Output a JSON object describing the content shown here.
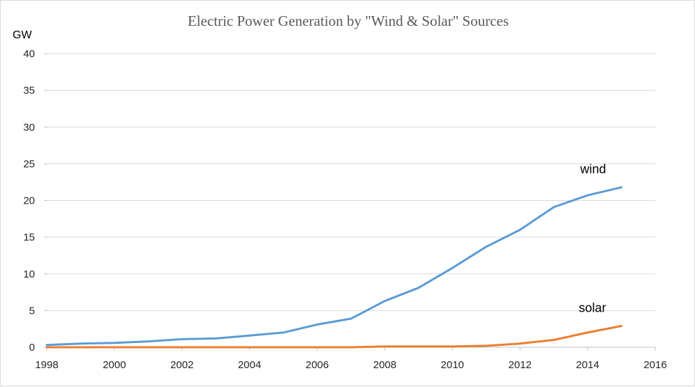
{
  "chart_data": {
    "type": "line",
    "title": "Electric Power Generation by \"Wind & Solar\" Sources",
    "ylabel": "GW",
    "xlabel": "",
    "xlim": [
      1998,
      2016
    ],
    "ylim": [
      0,
      40
    ],
    "x_ticks": [
      1998,
      2000,
      2002,
      2004,
      2006,
      2008,
      2010,
      2012,
      2014,
      2016
    ],
    "y_ticks": [
      0,
      5,
      10,
      15,
      20,
      25,
      30,
      35,
      40
    ],
    "grid": true,
    "x": [
      1998,
      1999,
      2000,
      2001,
      2002,
      2003,
      2004,
      2005,
      2006,
      2007,
      2008,
      2009,
      2010,
      2011,
      2012,
      2013,
      2014,
      2015
    ],
    "series": [
      {
        "name": "wind",
        "color": "#5b9bd5",
        "values": [
          0.3,
          0.5,
          0.6,
          0.8,
          1.1,
          1.2,
          1.6,
          2.0,
          3.1,
          3.9,
          6.3,
          8.1,
          10.8,
          13.7,
          16.0,
          19.1,
          20.7,
          21.8
        ]
      },
      {
        "name": "solar",
        "color": "#ed7d31",
        "values": [
          0.0,
          0.0,
          0.0,
          0.0,
          0.0,
          0.0,
          0.0,
          0.0,
          0.0,
          0.0,
          0.1,
          0.1,
          0.1,
          0.2,
          0.5,
          1.0,
          2.0,
          2.9
        ]
      }
    ],
    "gridline_color": "#d9d9d9",
    "axis_color": "#bfbfbf"
  }
}
